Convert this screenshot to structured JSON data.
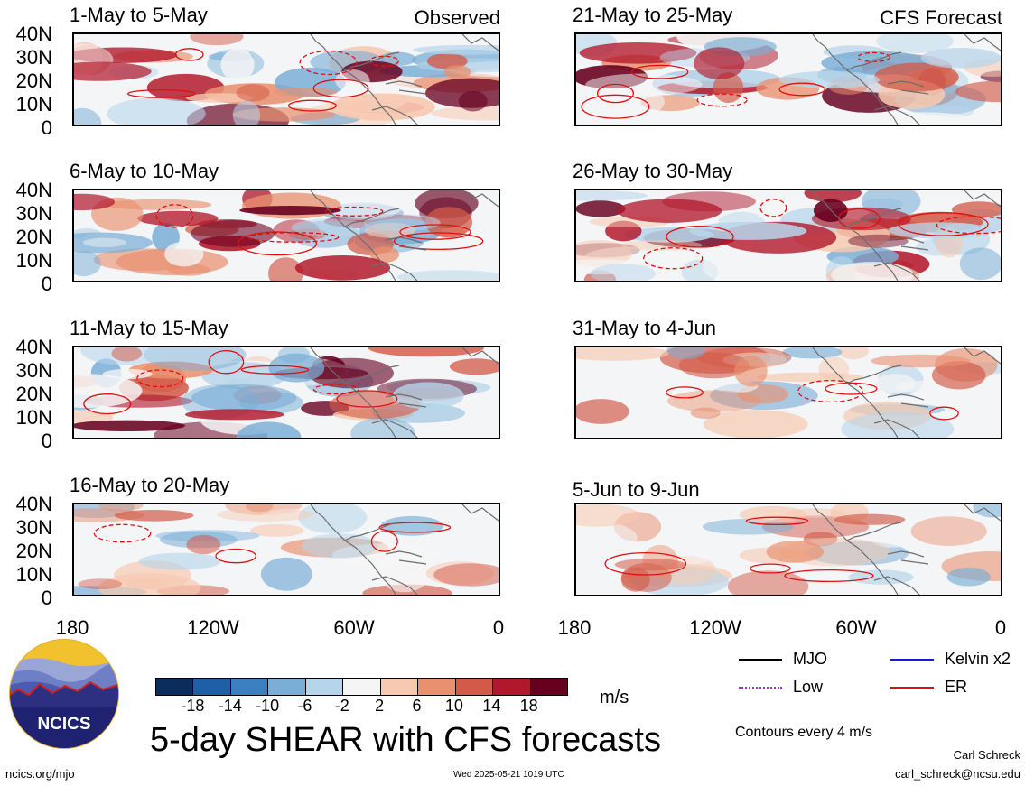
{
  "panels": [
    {
      "id": "p1",
      "title": "1-May to 5-May",
      "tag": "Observed"
    },
    {
      "id": "p2",
      "title": "21-May to 25-May",
      "tag": "CFS Forecast"
    },
    {
      "id": "p3",
      "title": "6-May to 10-May",
      "tag": ""
    },
    {
      "id": "p4",
      "title": "26-May to 30-May",
      "tag": ""
    },
    {
      "id": "p5",
      "title": "11-May to 15-May",
      "tag": ""
    },
    {
      "id": "p6",
      "title": "31-May to 4-Jun",
      "tag": ""
    },
    {
      "id": "p7",
      "title": "16-May to 20-May",
      "tag": ""
    },
    {
      "id": "p8",
      "title": "5-Jun to 9-Jun",
      "tag": ""
    }
  ],
  "lat_labels": [
    "40N",
    "30N",
    "20N",
    "10N",
    "0"
  ],
  "lon_labels": [
    "180",
    "120W",
    "60W",
    "0"
  ],
  "colorbar": {
    "labels": [
      "-18",
      "-14",
      "-10",
      "-6",
      "-2",
      "2",
      "6",
      "10",
      "14",
      "18"
    ],
    "colors": [
      "#0b2d5e",
      "#1f5fa8",
      "#3c7fc0",
      "#7aaed6",
      "#b7d5ea",
      "#f5f5f5",
      "#f7c9b0",
      "#e9906f",
      "#d35a48",
      "#b2182b",
      "#67001f"
    ],
    "unit": "m/s"
  },
  "legend": {
    "items": [
      {
        "label": "MJO",
        "color": "#000000"
      },
      {
        "label": "Kelvin x2",
        "color": "#1a1ad6"
      },
      {
        "label": "Low",
        "color": "#9b30d9"
      },
      {
        "label": "ER",
        "color": "#e01010"
      }
    ],
    "contours_note": "Contours every 4 m/s"
  },
  "main_title": "5-day SHEAR with CFS forecasts",
  "logo_text": "NCICS",
  "footer": {
    "url": "ncics.org/mjo",
    "timestamp": "Wed 2025-05-21 1019 UTC",
    "author": "Carl Schreck",
    "email": "carl_schreck@ncsu.edu"
  }
}
